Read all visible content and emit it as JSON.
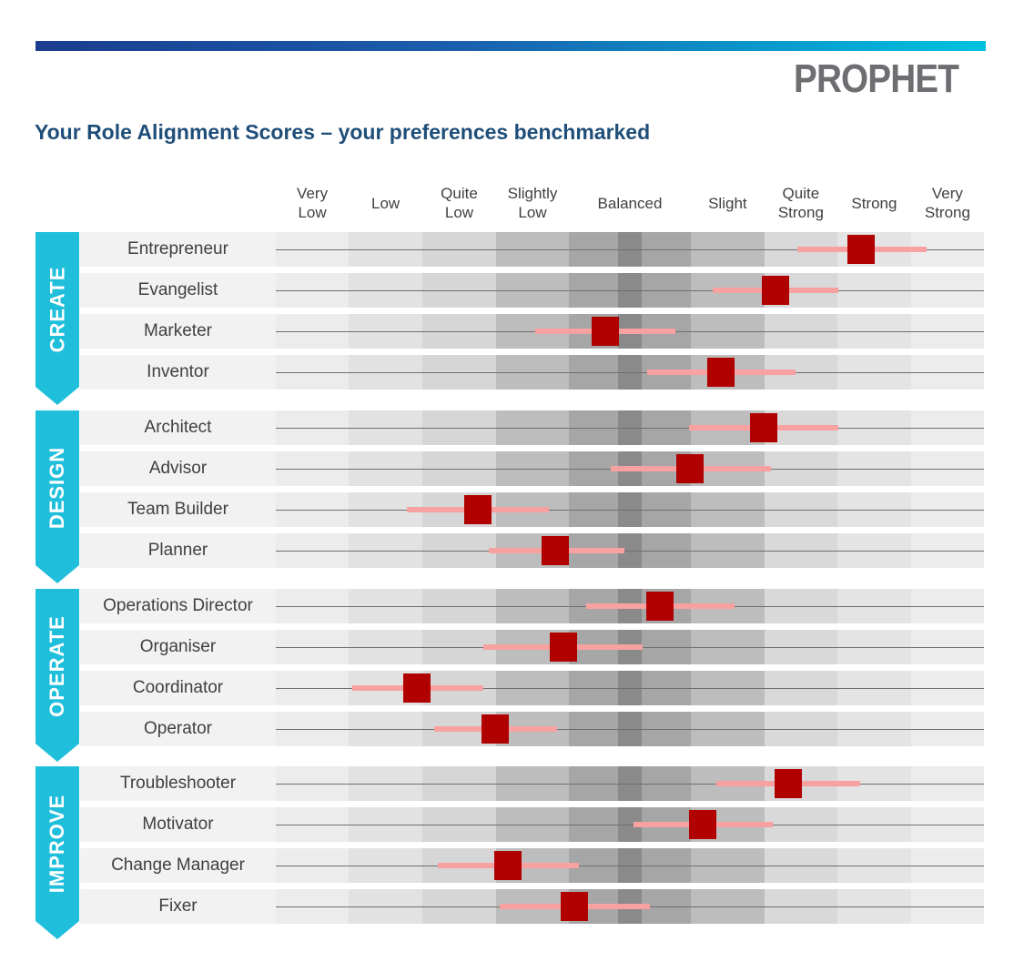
{
  "header": {
    "logo_text": "PROPHET",
    "title": "Your Role Alignment Scores – your preferences benchmarked"
  },
  "colors": {
    "marker": "#b00000",
    "range": "#f7a1a1",
    "banner": "#1fbfdc",
    "title": "#1f4e79"
  },
  "chart_data": {
    "type": "range-dot",
    "title": "Your Role Alignment Scores – your preferences benchmarked",
    "scale": "0-100 position along preference axis (no numeric ticks printed)",
    "xlim": [
      0,
      100
    ],
    "categories": [
      "Very Low",
      "Low",
      "Quite Low",
      "Slightly Low",
      "Balanced",
      "Slight",
      "Quite Strong",
      "Strong",
      "Very Strong"
    ],
    "category_bounds": [
      0,
      10.3,
      20.7,
      31.1,
      41.4,
      58.6,
      69.0,
      79.3,
      89.7,
      100
    ],
    "groups": [
      {
        "name": "CREATE",
        "roles": [
          {
            "label": "Entrepreneur",
            "score": 82.6,
            "low": 73.7,
            "high": 91.9
          },
          {
            "label": "Evangelist",
            "score": 70.6,
            "low": 61.7,
            "high": 79.4
          },
          {
            "label": "Marketer",
            "score": 46.5,
            "low": 36.6,
            "high": 56.4
          },
          {
            "label": "Inventor",
            "score": 62.9,
            "low": 52.4,
            "high": 73.4
          }
        ]
      },
      {
        "name": "DESIGN",
        "roles": [
          {
            "label": "Architect",
            "score": 68.9,
            "low": 58.4,
            "high": 79.4
          },
          {
            "label": "Advisor",
            "score": 58.5,
            "low": 47.3,
            "high": 69.9
          },
          {
            "label": "Team Builder",
            "score": 28.5,
            "low": 18.5,
            "high": 38.6
          },
          {
            "label": "Planner",
            "score": 39.5,
            "low": 30.1,
            "high": 49.2
          }
        ]
      },
      {
        "name": "OPERATE",
        "roles": [
          {
            "label": "Operations Director",
            "score": 54.2,
            "low": 43.8,
            "high": 64.8
          },
          {
            "label": "Organiser",
            "score": 40.6,
            "low": 29.3,
            "high": 51.8
          },
          {
            "label": "Coordinator",
            "score": 19.9,
            "low": 10.8,
            "high": 29.3
          },
          {
            "label": "Operator",
            "score": 31.0,
            "low": 22.4,
            "high": 39.7
          }
        ]
      },
      {
        "name": "IMPROVE",
        "roles": [
          {
            "label": "Troubleshooter",
            "score": 72.4,
            "low": 62.2,
            "high": 82.5
          },
          {
            "label": "Motivator",
            "score": 60.3,
            "low": 50.5,
            "high": 70.2
          },
          {
            "label": "Change Manager",
            "score": 32.8,
            "low": 22.9,
            "high": 42.8
          },
          {
            "label": "Fixer",
            "score": 42.2,
            "low": 31.6,
            "high": 52.8
          }
        ]
      }
    ],
    "band_colors": [
      "#ececec",
      "#e2e2e2",
      "#d6d6d6",
      "#bdbdbd",
      "#a6a6a6",
      "#bdbdbd",
      "#d9d9d9",
      "#e4e4e4",
      "#ececec"
    ],
    "center_band_color": "#8a8a8a"
  }
}
